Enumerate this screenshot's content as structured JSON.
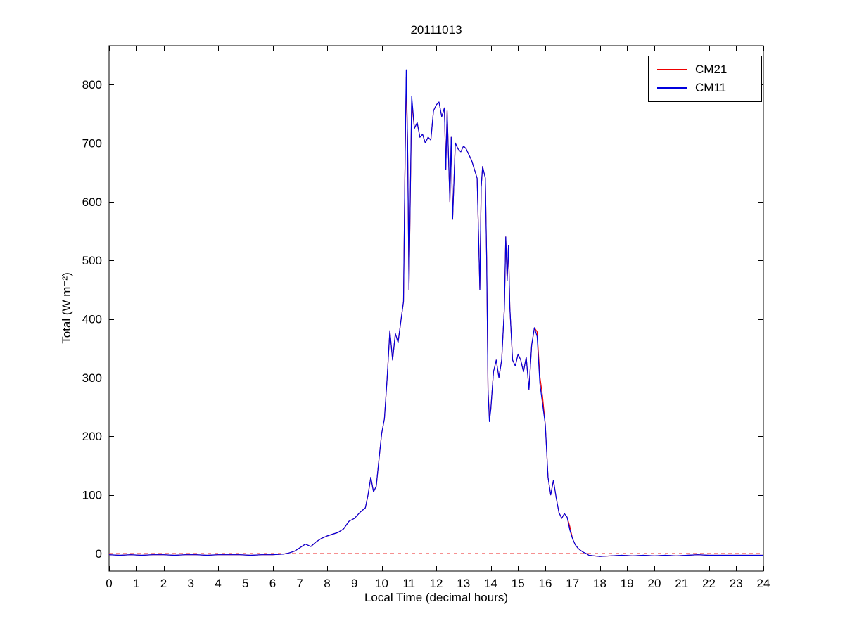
{
  "figure": {
    "background": "#ffffff"
  },
  "chart_data": {
    "type": "line",
    "title": "20111013",
    "xlabel": "Local Time (decimal hours)",
    "ylabel": "Total (W m⁻²)",
    "xlim": [
      0,
      24
    ],
    "ylim": [
      -30,
      866
    ],
    "xticks": [
      0,
      1,
      2,
      3,
      4,
      5,
      6,
      7,
      8,
      9,
      10,
      11,
      12,
      13,
      14,
      15,
      16,
      17,
      18,
      19,
      20,
      21,
      22,
      23,
      24
    ],
    "yticks": [
      0,
      100,
      200,
      300,
      400,
      500,
      600,
      700,
      800
    ],
    "grid": false,
    "legend": {
      "position": "top-right"
    },
    "zero_line": {
      "y": 0,
      "color": "#ee2222",
      "style": "dashed"
    },
    "x": [
      0,
      0.4,
      0.8,
      1.2,
      1.6,
      2,
      2.4,
      2.8,
      3.2,
      3.6,
      4,
      4.4,
      4.8,
      5.2,
      5.6,
      6,
      6.4,
      6.6,
      6.8,
      7,
      7.2,
      7.4,
      7.6,
      7.8,
      8,
      8.2,
      8.4,
      8.6,
      8.8,
      9,
      9.2,
      9.4,
      9.5,
      9.6,
      9.7,
      9.8,
      9.9,
      10,
      10.1,
      10.2,
      10.3,
      10.4,
      10.5,
      10.6,
      10.7,
      10.8,
      10.85,
      10.9,
      10.95,
      11,
      11.1,
      11.2,
      11.3,
      11.4,
      11.5,
      11.6,
      11.7,
      11.8,
      11.9,
      12,
      12.1,
      12.2,
      12.3,
      12.35,
      12.4,
      12.5,
      12.55,
      12.6,
      12.7,
      12.8,
      12.9,
      13,
      13.1,
      13.2,
      13.3,
      13.4,
      13.5,
      13.55,
      13.6,
      13.65,
      13.7,
      13.8,
      13.85,
      13.9,
      13.95,
      14,
      14.1,
      14.2,
      14.3,
      14.4,
      14.5,
      14.55,
      14.6,
      14.65,
      14.7,
      14.8,
      14.9,
      15,
      15.1,
      15.2,
      15.3,
      15.4,
      15.5,
      15.6,
      15.7,
      15.8,
      15.9,
      16,
      16.1,
      16.2,
      16.3,
      16.4,
      16.5,
      16.6,
      16.7,
      16.8,
      16.9,
      17,
      17.1,
      17.2,
      17.3,
      17.4,
      17.5,
      17.6,
      18,
      18.4,
      18.8,
      19.2,
      19.6,
      20,
      20.4,
      20.8,
      21.2,
      21.6,
      22,
      22.4,
      22.8,
      23.2,
      23.6,
      24
    ],
    "series": [
      {
        "name": "CM21",
        "color": "#ee0000",
        "values": [
          -2,
          -3,
          -2,
          -3,
          -2,
          -2,
          -3,
          -2,
          -2,
          -3,
          -2,
          -2,
          -2,
          -3,
          -2,
          -2,
          -1,
          1,
          4,
          10,
          16,
          12,
          20,
          26,
          30,
          33,
          36,
          42,
          55,
          60,
          70,
          78,
          100,
          130,
          105,
          115,
          160,
          205,
          230,
          300,
          380,
          330,
          375,
          360,
          395,
          430,
          640,
          812,
          700,
          450,
          770,
          725,
          735,
          710,
          715,
          700,
          710,
          705,
          755,
          765,
          770,
          745,
          760,
          655,
          755,
          600,
          710,
          570,
          700,
          690,
          685,
          695,
          690,
          680,
          670,
          655,
          640,
          545,
          450,
          625,
          660,
          640,
          500,
          280,
          232,
          245,
          310,
          330,
          300,
          330,
          420,
          540,
          465,
          525,
          420,
          330,
          320,
          340,
          330,
          310,
          335,
          280,
          355,
          385,
          378,
          302,
          268,
          220,
          130,
          100,
          125,
          95,
          70,
          60,
          68,
          62,
          46,
          25,
          15,
          9,
          5,
          2,
          0,
          -3,
          -5,
          -4,
          -3,
          -4,
          -3,
          -4,
          -3,
          -4,
          -3,
          -2,
          -3,
          -3,
          -3,
          -3,
          -3,
          -3
        ]
      },
      {
        "name": "CM11",
        "color": "#0000dd",
        "values": [
          -2,
          -3,
          -2,
          -3,
          -2,
          -2,
          -3,
          -2,
          -2,
          -3,
          -2,
          -2,
          -2,
          -3,
          -2,
          -2,
          -1,
          1,
          4,
          10,
          16,
          12,
          20,
          26,
          30,
          33,
          36,
          42,
          55,
          60,
          70,
          78,
          100,
          130,
          105,
          115,
          160,
          205,
          230,
          300,
          380,
          330,
          375,
          360,
          395,
          430,
          640,
          825,
          700,
          450,
          780,
          725,
          735,
          710,
          715,
          700,
          710,
          705,
          755,
          765,
          770,
          745,
          760,
          655,
          755,
          600,
          710,
          570,
          700,
          690,
          685,
          695,
          690,
          680,
          670,
          655,
          640,
          545,
          450,
          625,
          660,
          640,
          500,
          280,
          225,
          245,
          310,
          330,
          300,
          330,
          420,
          540,
          465,
          525,
          420,
          330,
          320,
          340,
          330,
          310,
          335,
          280,
          355,
          385,
          370,
          290,
          255,
          220,
          130,
          100,
          125,
          95,
          70,
          60,
          68,
          62,
          40,
          25,
          15,
          9,
          5,
          2,
          0,
          -3,
          -5,
          -4,
          -3,
          -4,
          -3,
          -4,
          -3,
          -4,
          -3,
          -2,
          -3,
          -3,
          -3,
          -3,
          -3,
          -3
        ]
      }
    ]
  }
}
